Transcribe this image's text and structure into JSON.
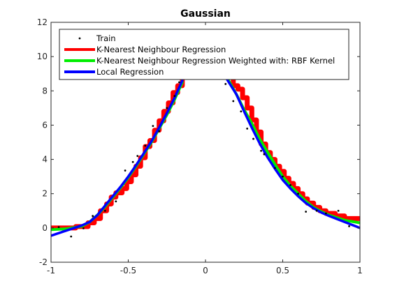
{
  "chart_data": {
    "type": "line",
    "title": "Gaussian",
    "xlabel": "",
    "ylabel": "",
    "xlim": [
      -1,
      1
    ],
    "ylim": [
      -2,
      12
    ],
    "xticks": [
      -1,
      -0.5,
      0,
      0.5,
      1
    ],
    "xtick_labels": [
      "-1",
      "-0.5",
      "0",
      "0.5",
      "1"
    ],
    "yticks": [
      -2,
      0,
      2,
      4,
      6,
      8,
      10,
      12
    ],
    "ytick_labels": [
      "-2",
      "0",
      "2",
      "4",
      "6",
      "8",
      "10",
      "12"
    ],
    "grid": false,
    "legend_position": "top-left",
    "series": [
      {
        "name": "Train",
        "kind": "scatter",
        "color": "#000000",
        "x": [
          -0.95,
          -0.87,
          -0.79,
          -0.73,
          -0.65,
          -0.58,
          -0.52,
          -0.47,
          -0.44,
          -0.39,
          -0.34,
          -0.3,
          -0.25,
          -0.2,
          -0.17,
          0.13,
          0.18,
          0.23,
          0.27,
          0.31,
          0.36,
          0.38,
          0.45,
          0.5,
          0.55,
          0.6,
          0.65,
          0.72,
          0.78,
          0.86,
          0.93
        ],
        "y": [
          0.05,
          -0.5,
          -0.02,
          0.7,
          1.0,
          1.55,
          3.35,
          3.85,
          4.2,
          4.8,
          5.95,
          5.65,
          7.0,
          7.7,
          8.5,
          8.4,
          7.4,
          6.8,
          5.8,
          5.2,
          4.5,
          4.3,
          3.5,
          3.0,
          2.5,
          2.0,
          0.95,
          1.0,
          0.85,
          1.0,
          0.1
        ]
      },
      {
        "name": "K-Nearest Neighbour Regression",
        "kind": "step",
        "color": "#ff0000",
        "x": [
          -1.0,
          -0.92,
          -0.84,
          -0.76,
          -0.72,
          -0.68,
          -0.64,
          -0.61,
          -0.58,
          -0.54,
          -0.51,
          -0.48,
          -0.45,
          -0.42,
          -0.39,
          -0.36,
          -0.33,
          -0.3,
          -0.27,
          -0.24,
          -0.21,
          -0.18,
          -0.15,
          0.15,
          0.18,
          0.21,
          0.24,
          0.27,
          0.3,
          0.33,
          0.36,
          0.39,
          0.42,
          0.45,
          0.48,
          0.51,
          0.54,
          0.57,
          0.6,
          0.63,
          0.66,
          0.7,
          0.74,
          0.78,
          0.84,
          0.9,
          1.0
        ],
        "y": [
          0.0,
          0.0,
          0.08,
          0.3,
          0.55,
          1.0,
          1.4,
          1.8,
          2.05,
          2.3,
          2.7,
          3.1,
          3.6,
          4.1,
          4.75,
          5.1,
          5.7,
          6.25,
          6.8,
          7.3,
          7.9,
          8.3,
          8.9,
          8.9,
          8.3,
          8.1,
          7.6,
          7.0,
          6.3,
          5.6,
          4.9,
          4.4,
          4.0,
          3.6,
          3.3,
          2.9,
          2.6,
          2.3,
          2.0,
          1.7,
          1.45,
          1.2,
          1.0,
          0.85,
          0.7,
          0.55,
          0.55
        ]
      },
      {
        "name": "K-Nearest Neighbour Regression Weighted with: RBF Kernel",
        "kind": "line",
        "color": "#00ee00",
        "x": [
          -1.0,
          -0.9,
          -0.8,
          -0.75,
          -0.7,
          -0.65,
          -0.6,
          -0.55,
          -0.5,
          -0.45,
          -0.4,
          -0.35,
          -0.3,
          -0.25,
          -0.2,
          -0.15,
          0.15,
          0.2,
          0.25,
          0.3,
          0.35,
          0.4,
          0.45,
          0.5,
          0.55,
          0.6,
          0.65,
          0.7,
          0.75,
          0.8,
          0.9,
          1.0
        ],
        "y": [
          -0.1,
          -0.05,
          0.1,
          0.35,
          0.75,
          1.25,
          1.8,
          2.35,
          2.95,
          3.6,
          4.3,
          5.0,
          5.8,
          6.6,
          7.5,
          8.5,
          8.6,
          7.8,
          6.9,
          6.1,
          5.2,
          4.45,
          3.7,
          3.0,
          2.45,
          2.0,
          1.55,
          1.2,
          0.95,
          0.75,
          0.45,
          0.3
        ]
      },
      {
        "name": "Local Regression",
        "kind": "line",
        "color": "#0000ff",
        "x": [
          -1.0,
          -0.9,
          -0.8,
          -0.75,
          -0.7,
          -0.65,
          -0.6,
          -0.55,
          -0.5,
          -0.45,
          -0.4,
          -0.35,
          -0.3,
          -0.25,
          -0.2,
          -0.15,
          0.13,
          0.2,
          0.25,
          0.3,
          0.35,
          0.4,
          0.45,
          0.5,
          0.55,
          0.6,
          0.65,
          0.7,
          0.75,
          0.8,
          0.9,
          1.0
        ],
        "y": [
          -0.45,
          -0.15,
          0.15,
          0.35,
          0.75,
          1.3,
          1.85,
          2.4,
          3.0,
          3.65,
          4.35,
          5.05,
          5.85,
          6.7,
          7.6,
          8.6,
          8.8,
          7.8,
          6.8,
          5.85,
          4.95,
          4.15,
          3.45,
          2.8,
          2.3,
          1.85,
          1.45,
          1.15,
          0.9,
          0.7,
          0.35,
          0.0
        ]
      }
    ]
  }
}
